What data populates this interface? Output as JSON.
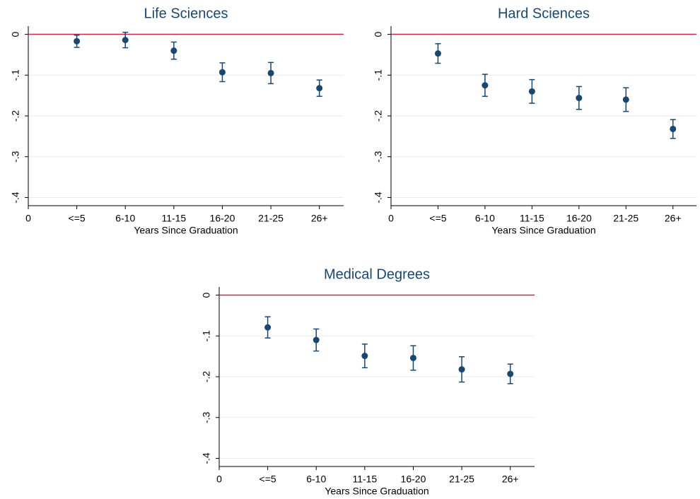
{
  "chart_data": [
    {
      "type": "scatter",
      "title": "Life Sciences",
      "x_label": "Years Since Graduation",
      "x": [
        1,
        2,
        3,
        4,
        5,
        6
      ],
      "values": [
        -0.017,
        -0.014,
        -0.04,
        -0.093,
        -0.095,
        -0.132
      ],
      "errors": [
        0.015,
        0.019,
        0.021,
        0.023,
        0.026,
        0.02
      ],
      "color": "#1a476f",
      "refline": 0,
      "refline_color": "#c0284a",
      "xlim": [
        0,
        6.5
      ],
      "xticks": [
        0,
        {
          "value": 1,
          "label": "<=5"
        },
        {
          "value": 2,
          "label": "6-10"
        },
        {
          "value": 3,
          "label": "11-15"
        },
        {
          "value": 4,
          "label": "16-20"
        },
        {
          "value": 5,
          "label": "21-25"
        },
        {
          "value": 6,
          "label": "26+"
        }
      ],
      "ylim": [
        -0.42,
        0.02
      ],
      "yticks": [
        0,
        {
          "value": -0.1,
          "label": "-.1"
        },
        {
          "value": -0.2,
          "label": "-.2"
        },
        {
          "value": -0.3,
          "label": "-.3"
        },
        {
          "value": -0.4,
          "label": "-.4"
        }
      ],
      "grid": true
    },
    {
      "type": "scatter",
      "title": "Hard Sciences",
      "x_label": "Years Since Graduation",
      "x": [
        1,
        2,
        3,
        4,
        5,
        6
      ],
      "values": [
        -0.047,
        -0.125,
        -0.14,
        -0.156,
        -0.16,
        -0.232
      ],
      "errors": [
        0.024,
        0.027,
        0.029,
        0.028,
        0.029,
        0.023
      ],
      "color": "#1a476f",
      "refline": 0,
      "refline_color": "#c0284a",
      "xlim": [
        0,
        6.5
      ],
      "xticks": [
        0,
        {
          "value": 1,
          "label": "<=5"
        },
        {
          "value": 2,
          "label": "6-10"
        },
        {
          "value": 3,
          "label": "11-15"
        },
        {
          "value": 4,
          "label": "16-20"
        },
        {
          "value": 5,
          "label": "21-25"
        },
        {
          "value": 6,
          "label": "26+"
        }
      ],
      "ylim": [
        -0.42,
        0.02
      ],
      "yticks": [
        0,
        {
          "value": -0.1,
          "label": "-.1"
        },
        {
          "value": -0.2,
          "label": "-.2"
        },
        {
          "value": -0.3,
          "label": "-.3"
        },
        {
          "value": -0.4,
          "label": "-.4"
        }
      ],
      "grid": true
    },
    {
      "type": "scatter",
      "title": "Medical Degrees",
      "x_label": "Years Since Graduation",
      "x": [
        1,
        2,
        3,
        4,
        5,
        6
      ],
      "values": [
        -0.079,
        -0.11,
        -0.149,
        -0.154,
        -0.182,
        -0.193
      ],
      "errors": [
        0.026,
        0.027,
        0.029,
        0.03,
        0.031,
        0.024
      ],
      "color": "#1a476f",
      "refline": 0,
      "refline_color": "#c0284a",
      "xlim": [
        0,
        6.5
      ],
      "xticks": [
        0,
        {
          "value": 1,
          "label": "<=5"
        },
        {
          "value": 2,
          "label": "6-10"
        },
        {
          "value": 3,
          "label": "11-15"
        },
        {
          "value": 4,
          "label": "16-20"
        },
        {
          "value": 5,
          "label": "21-25"
        },
        {
          "value": 6,
          "label": "26+"
        }
      ],
      "ylim": [
        -0.42,
        0.02
      ],
      "yticks": [
        0,
        {
          "value": -0.1,
          "label": "-.1"
        },
        {
          "value": -0.2,
          "label": "-.2"
        },
        {
          "value": -0.3,
          "label": "-.3"
        },
        {
          "value": -0.4,
          "label": "-.4"
        }
      ],
      "grid": true
    }
  ]
}
